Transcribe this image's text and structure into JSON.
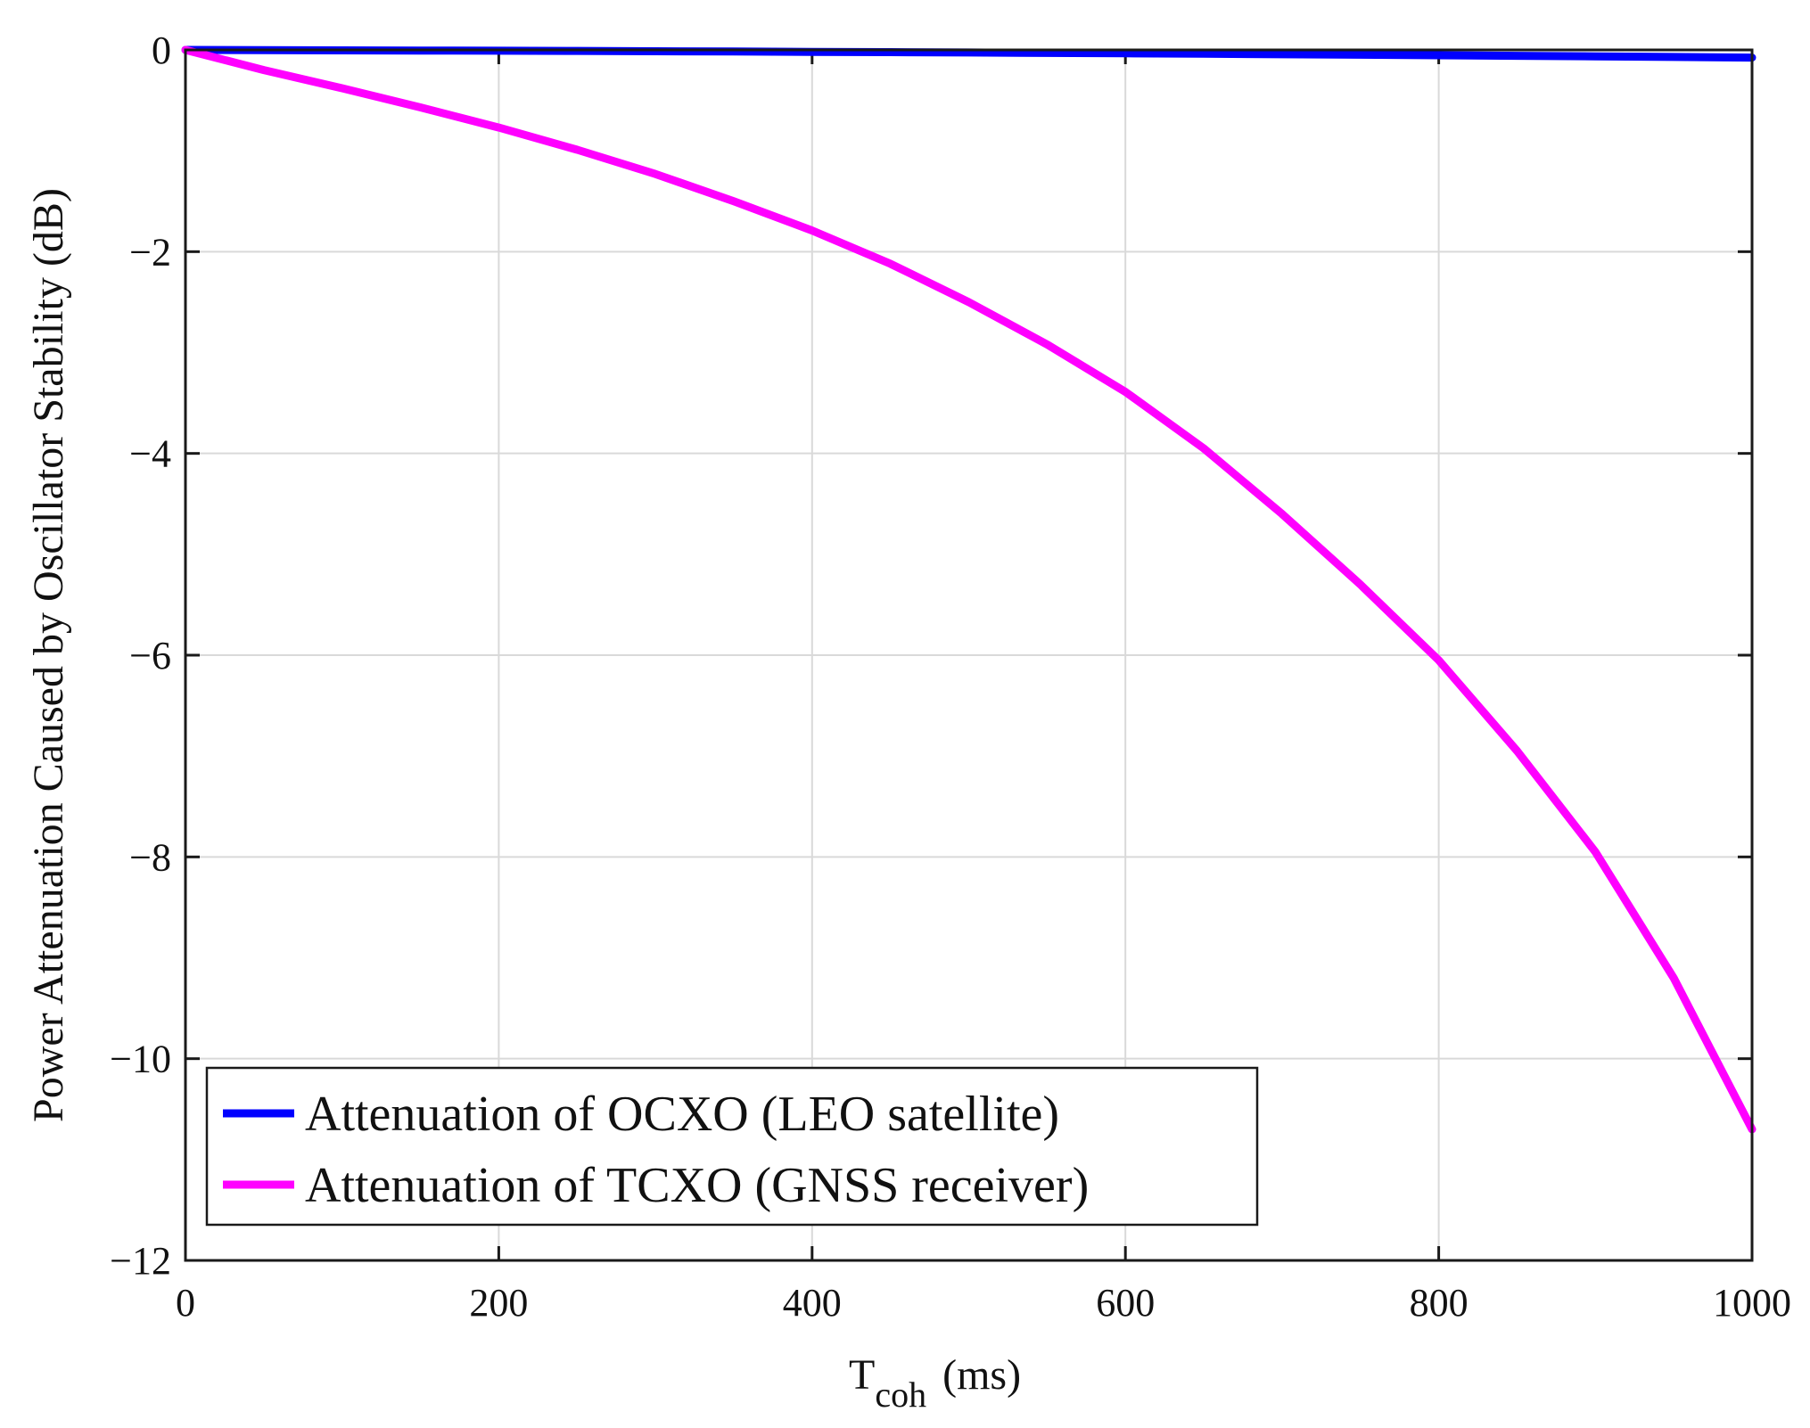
{
  "chart_data": {
    "type": "line",
    "title": "",
    "xlabel_main": "T",
    "xlabel_sub": "coh",
    "xlabel_unit": "(ms)",
    "ylabel": "Power Attenuation Caused by Oscillator Stability (dB)",
    "xlim": [
      0,
      1000
    ],
    "ylim": [
      -12,
      0
    ],
    "xticks": [
      0,
      200,
      400,
      600,
      800,
      1000
    ],
    "yticks": [
      0,
      -2,
      -4,
      -6,
      -8,
      -10,
      -12
    ],
    "xtick_labels": [
      "0",
      "200",
      "400",
      "600",
      "800",
      "1000"
    ],
    "ytick_labels": [
      "0",
      "−2",
      "−4",
      "−6",
      "−8",
      "−10",
      "−12"
    ],
    "grid": true,
    "legend_position": "bottom-left",
    "x": [
      0,
      50,
      100,
      150,
      200,
      250,
      300,
      350,
      400,
      450,
      500,
      550,
      600,
      650,
      700,
      750,
      800,
      850,
      900,
      950,
      1000
    ],
    "series": [
      {
        "name": "Attenuation of OCXO (LEO satellite)",
        "color": "#0000ff",
        "values": [
          0,
          -0.002,
          -0.004,
          -0.006,
          -0.008,
          -0.01,
          -0.013,
          -0.016,
          -0.019,
          -0.022,
          -0.026,
          -0.03,
          -0.034,
          -0.038,
          -0.043,
          -0.048,
          -0.053,
          -0.058,
          -0.064,
          -0.07,
          -0.076
        ]
      },
      {
        "name": "Attenuation of TCXO (GNSS receiver)",
        "color": "#ff00ff",
        "values": [
          0,
          -0.2,
          -0.38,
          -0.57,
          -0.77,
          -0.99,
          -1.23,
          -1.5,
          -1.79,
          -2.12,
          -2.5,
          -2.92,
          -3.39,
          -3.95,
          -4.6,
          -5.3,
          -6.05,
          -6.95,
          -7.95,
          -9.2,
          -10.7
        ]
      }
    ]
  }
}
